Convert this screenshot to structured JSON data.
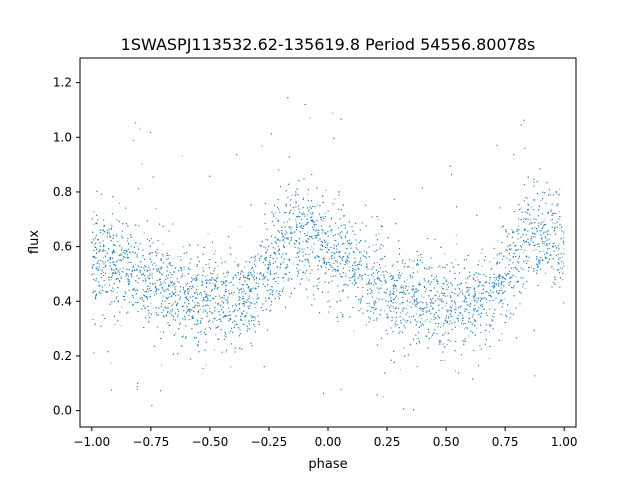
{
  "chart_data": {
    "type": "scatter",
    "title": "1SWASPJ113532.62-135619.8 Period 54556.80078s",
    "xlabel": "phase",
    "ylabel": "flux",
    "xlim": [
      -1.05,
      1.05
    ],
    "ylim": [
      -0.06,
      1.29
    ],
    "x_ticks": [
      -1.0,
      -0.75,
      -0.5,
      -0.25,
      0.0,
      0.25,
      0.5,
      0.75,
      1.0
    ],
    "x_tick_labels": [
      "−1.00",
      "−0.75",
      "−0.50",
      "−0.25",
      "0.00",
      "0.25",
      "0.50",
      "0.75",
      "1.00"
    ],
    "y_ticks": [
      0.0,
      0.2,
      0.4,
      0.6,
      0.8,
      1.0,
      1.2
    ],
    "y_tick_labels": [
      "0.0",
      "0.2",
      "0.4",
      "0.6",
      "0.8",
      "1.0",
      "1.2"
    ],
    "grid": false,
    "marker_color": "#1f77b4",
    "series": [
      {
        "phase": [
          -1.0,
          -0.9,
          -0.8,
          -0.7,
          -0.6,
          -0.5,
          -0.4,
          -0.3,
          -0.25,
          -0.2,
          -0.15,
          -0.1,
          -0.05,
          0.0,
          0.05,
          0.1,
          0.2,
          0.3,
          0.4,
          0.5,
          0.6,
          0.7,
          0.75,
          0.8,
          0.85,
          0.9,
          0.95,
          1.0
        ],
        "flux_center": [
          0.55,
          0.54,
          0.5,
          0.46,
          0.42,
          0.4,
          0.39,
          0.44,
          0.52,
          0.6,
          0.64,
          0.64,
          0.62,
          0.58,
          0.55,
          0.51,
          0.46,
          0.42,
          0.4,
          0.39,
          0.38,
          0.42,
          0.5,
          0.57,
          0.63,
          0.64,
          0.63,
          0.6
        ],
        "flux_spread": 0.09,
        "point_count": 9000
      }
    ]
  }
}
